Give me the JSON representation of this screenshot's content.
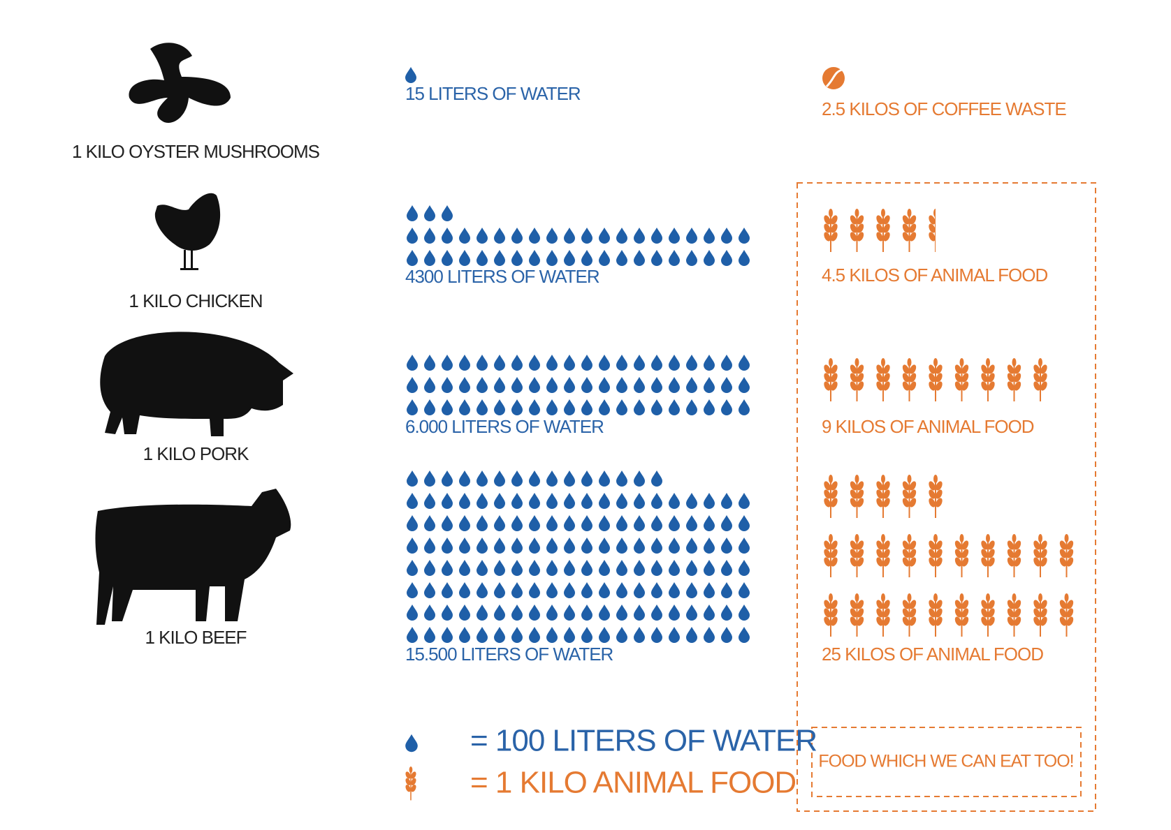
{
  "items": [
    {
      "label": "1 KILO OYSTER MUSHROOMS",
      "water": {
        "value": 15,
        "label": "15 LITERS OF WATER"
      },
      "feed": {
        "value": 2.5,
        "label": "2.5 KILOS OF COFFEE WASTE"
      }
    },
    {
      "label": "1 KILO CHICKEN",
      "water": {
        "value": 4300,
        "label": "4300 LITERS OF WATER"
      },
      "feed": {
        "value": 4.5,
        "label": "4.5 KILOS OF ANIMAL FOOD"
      }
    },
    {
      "label": "1 KILO PORK",
      "water": {
        "value": 6000,
        "label": "6.000 LITERS OF WATER"
      },
      "feed": {
        "value": 9,
        "label": "9 KILOS OF ANIMAL FOOD"
      }
    },
    {
      "label": "1 KILO BEEF",
      "water": {
        "value": 15500,
        "label": "15.500 LITERS OF WATER"
      },
      "feed": {
        "value": 25,
        "label": "25 KILOS OF ANIMAL FOOD"
      }
    }
  ],
  "legend": {
    "water": {
      "value": 100,
      "label": "= 100 LITERS OF WATER"
    },
    "feed": {
      "value": 1,
      "label": "= 1 KILO ANIMAL FOOD"
    }
  },
  "note": "FOOD WHICH WE CAN EAT TOO!"
}
